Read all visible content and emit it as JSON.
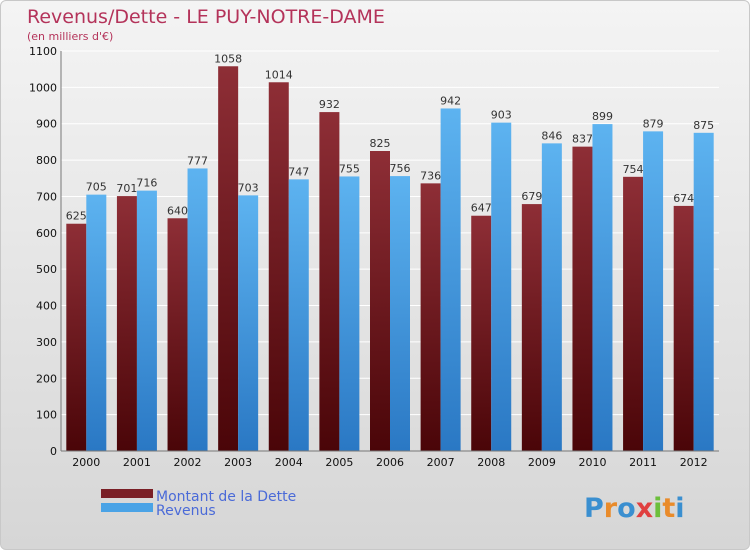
{
  "chart_data": {
    "type": "bar",
    "title": "Revenus/Dette - LE PUY-NOTRE-DAME",
    "subtitle": "(en milliers d'€)",
    "categories": [
      "2000",
      "2001",
      "2002",
      "2003",
      "2004",
      "2005",
      "2006",
      "2007",
      "2008",
      "2009",
      "2010",
      "2011",
      "2012"
    ],
    "series": [
      {
        "name": "Montant de la Dette",
        "color": "#7a1f26",
        "values": [
          625,
          701,
          640,
          1058,
          1014,
          932,
          825,
          736,
          647,
          679,
          837,
          754,
          674
        ]
      },
      {
        "name": "Revenus",
        "color": "#4aa3e6",
        "values": [
          705,
          716,
          777,
          703,
          747,
          755,
          756,
          942,
          903,
          846,
          899,
          879,
          875
        ]
      }
    ],
    "ylim": [
      0,
      1100
    ],
    "ytick_step": 100,
    "grid": true,
    "legend": "bottom-left"
  },
  "brand": {
    "name": "Proxiti",
    "letters": [
      "P",
      "r",
      "o",
      "x",
      "i",
      "t",
      "i"
    ]
  }
}
